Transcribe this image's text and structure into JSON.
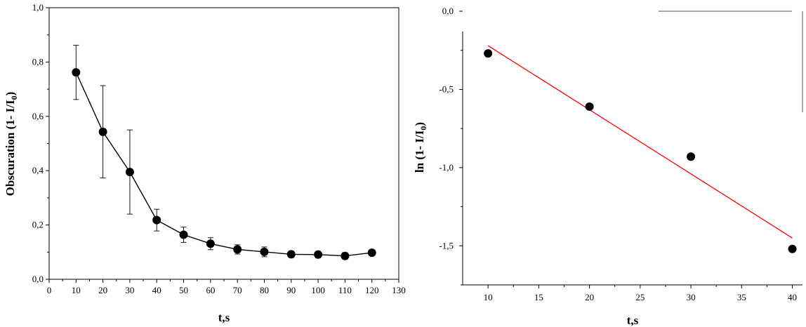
{
  "chart_data": [
    {
      "type": "line",
      "xlabel": "t,s",
      "ylabel": "Obscuration (1- I/I0)",
      "xlim": [
        0,
        130
      ],
      "ylim": [
        0,
        1.0
      ],
      "xticks": [
        "0",
        "10",
        "20",
        "30",
        "40",
        "50",
        "60",
        "70",
        "80",
        "90",
        "100",
        "110",
        "120",
        "130"
      ],
      "yticks": [
        "0,0",
        "0,2",
        "0,4",
        "0,6",
        "0,8",
        "1,0"
      ],
      "grid": false,
      "series": [
        {
          "x": [
            10,
            20,
            30,
            40,
            50,
            60,
            70,
            80,
            90,
            100,
            110,
            120
          ],
          "y": [
            0.762,
            0.543,
            0.395,
            0.218,
            0.164,
            0.131,
            0.11,
            0.101,
            0.092,
            0.091,
            0.086,
            0.098
          ],
          "error": [
            0.1,
            0.17,
            0.155,
            0.04,
            0.028,
            0.022,
            0.017,
            0.018,
            0.012,
            0.012,
            0.012,
            0.008
          ],
          "color": "#000000"
        }
      ]
    },
    {
      "type": "scatter",
      "xlabel": "t,s",
      "ylabel": "ln (1- I/I0)",
      "xlim": [
        7.5,
        41
      ],
      "ylim": [
        -1.75,
        0
      ],
      "xticks": [
        "10",
        "15",
        "20",
        "25",
        "30",
        "35",
        "40"
      ],
      "yticks": [
        "0,0",
        "-0,5",
        "-1,0",
        "-1,5"
      ],
      "grid": false,
      "series": [
        {
          "x": [
            10,
            20,
            30,
            40
          ],
          "y": [
            -0.27,
            -0.61,
            -0.93,
            -1.52
          ],
          "color": "#000000"
        }
      ],
      "fit_line": {
        "x": [
          10,
          40
        ],
        "y": [
          -0.22,
          -1.45
        ],
        "color": "#ff0000"
      }
    }
  ]
}
